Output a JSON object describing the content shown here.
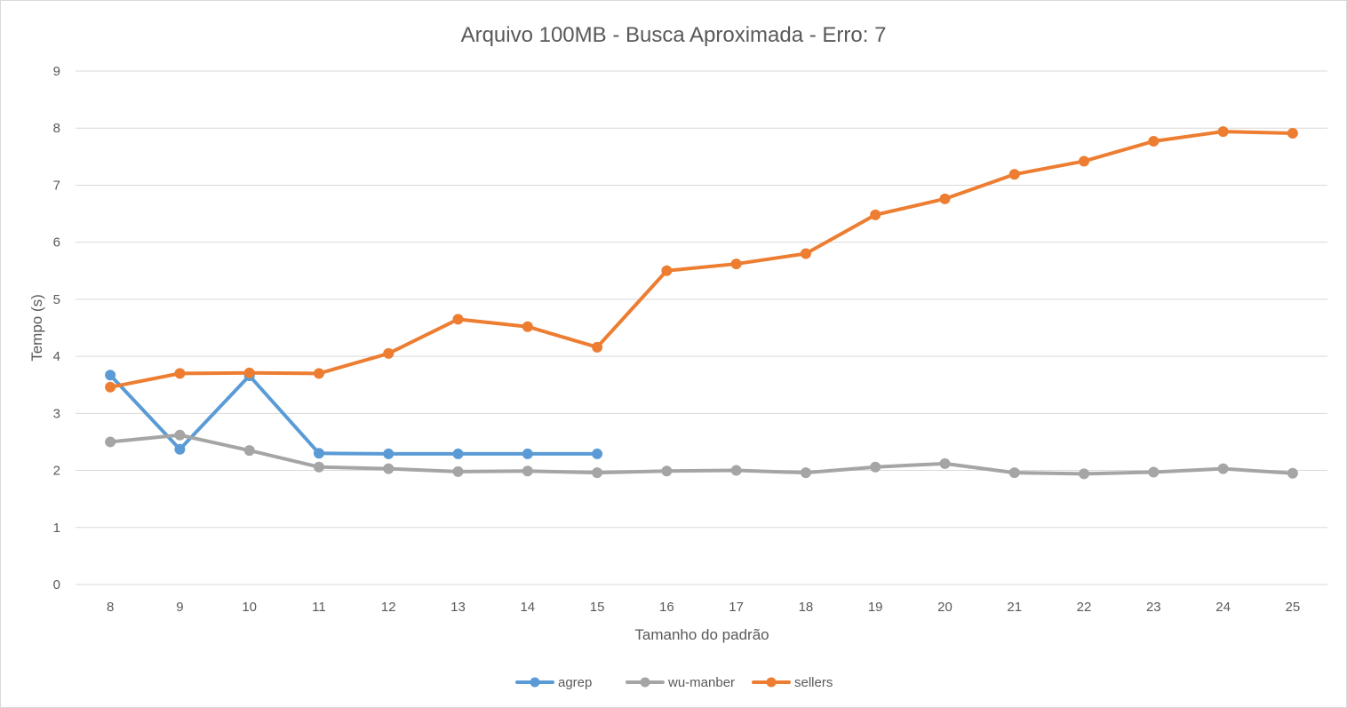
{
  "chart_data": {
    "type": "line",
    "title": "Arquivo 100MB - Busca Aproximada - Erro: 7",
    "xlabel": "Tamanho do padrão",
    "ylabel": "Tempo (s)",
    "ylim": [
      0,
      9
    ],
    "yticks": [
      "0",
      "1",
      "2",
      "3",
      "4",
      "5",
      "6",
      "7",
      "8",
      "9"
    ],
    "categories": [
      "8",
      "9",
      "10",
      "11",
      "12",
      "13",
      "14",
      "15",
      "16",
      "17",
      "18",
      "19",
      "20",
      "21",
      "22",
      "23",
      "24",
      "25"
    ],
    "grid": true,
    "legend_position": "bottom",
    "series": [
      {
        "name": "agrep",
        "color": "#5b9bd5",
        "values": [
          3.67,
          2.37,
          3.66,
          2.3,
          2.29,
          2.29,
          2.29,
          2.29,
          null,
          null,
          null,
          null,
          null,
          null,
          null,
          null,
          null,
          null
        ]
      },
      {
        "name": "wu-manber",
        "color": "#a5a5a5",
        "values": [
          2.5,
          2.62,
          2.35,
          2.06,
          2.03,
          1.98,
          1.99,
          1.96,
          1.99,
          2.0,
          1.96,
          2.06,
          2.12,
          1.96,
          1.94,
          1.97,
          2.03,
          1.95
        ]
      },
      {
        "name": "sellers",
        "color": "#ed7d31",
        "values": [
          3.46,
          3.7,
          3.71,
          3.7,
          4.05,
          4.65,
          4.52,
          4.16,
          5.5,
          5.62,
          5.8,
          6.48,
          6.76,
          7.19,
          7.42,
          7.77,
          7.94,
          7.91
        ]
      }
    ]
  }
}
